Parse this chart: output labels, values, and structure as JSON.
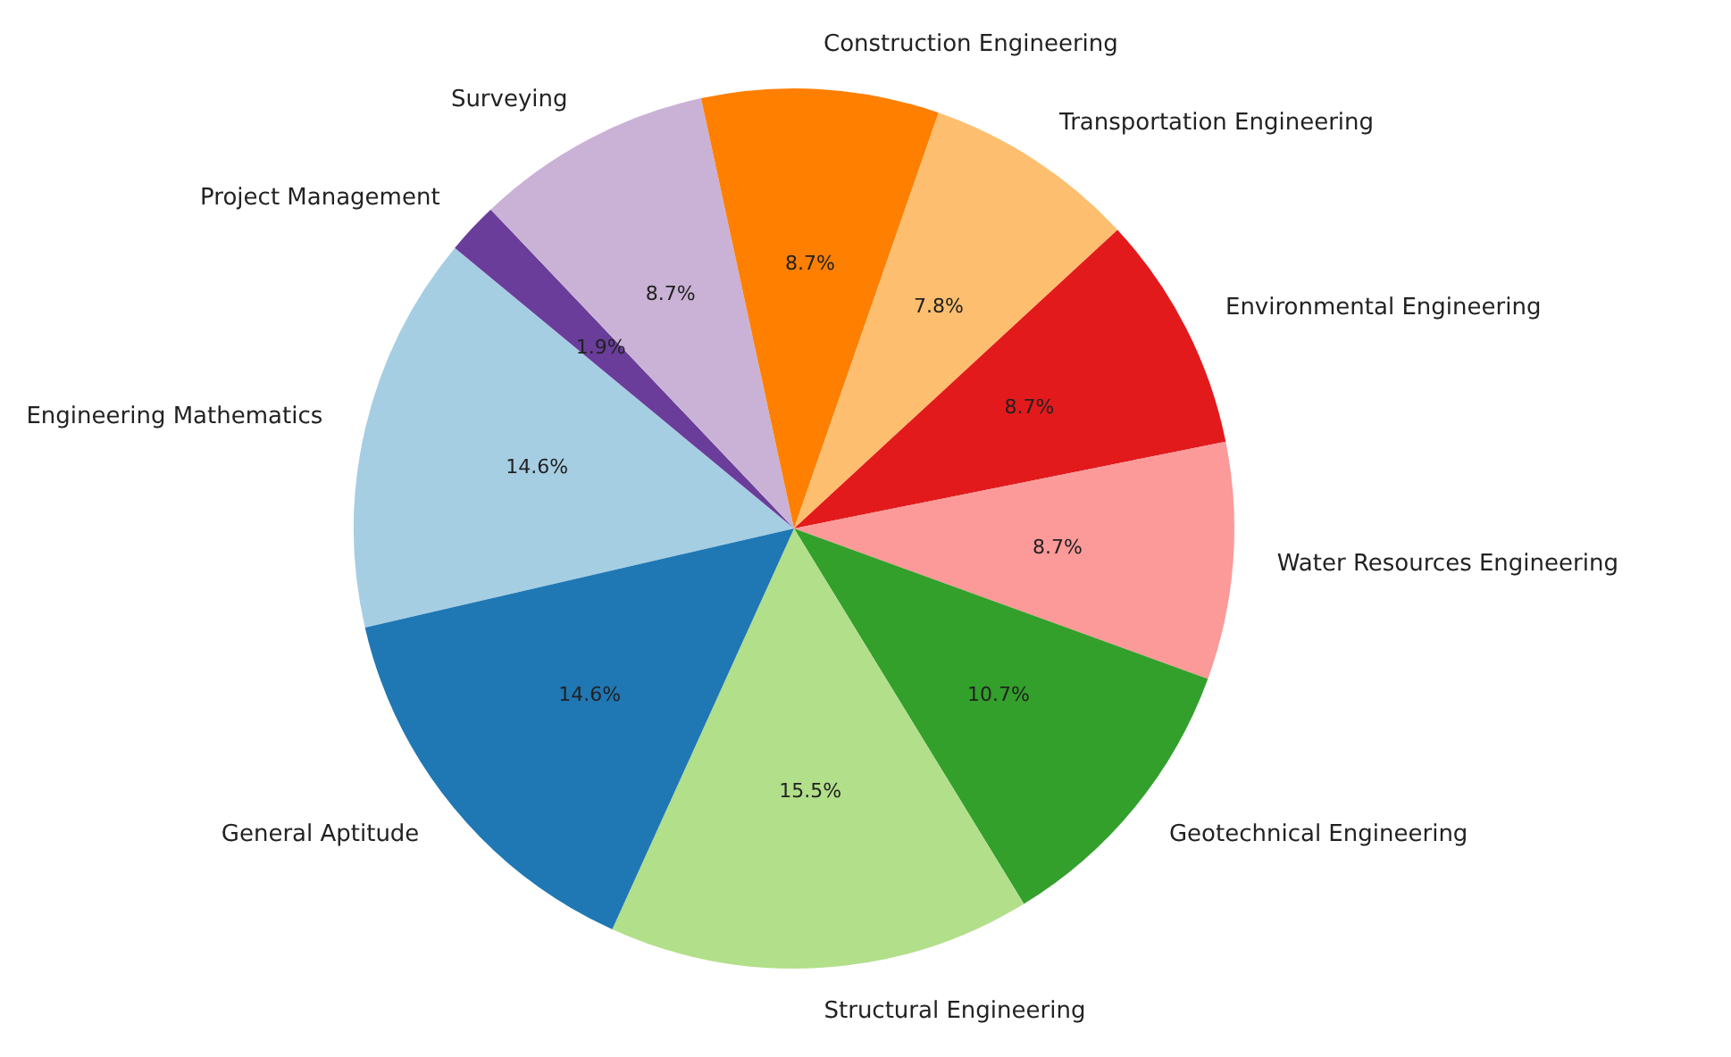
{
  "chart_data": {
    "type": "pie",
    "categories": [
      "Engineering Mathematics",
      "Project Management",
      "Surveying",
      "Construction Engineering",
      "Transportation Engineering",
      "Environmental Engineering",
      "Water Resources Engineering",
      "Geotechnical Engineering",
      "Structural Engineering",
      "General Aptitude"
    ],
    "values": [
      14.6,
      1.9,
      8.7,
      8.7,
      7.8,
      8.7,
      8.7,
      10.7,
      15.5,
      14.6
    ],
    "value_labels": [
      "14.6%",
      "1.9%",
      "8.7%",
      "8.7%",
      "7.8%",
      "8.7%",
      "8.7%",
      "10.7%",
      "15.5%",
      "14.6%"
    ],
    "colors": [
      "#a6cee3",
      "#6a3d9a",
      "#cab2d6",
      "#ff7f00",
      "#fdbf6f",
      "#e31a1c",
      "#fb9a99",
      "#33a02c",
      "#b2df8a",
      "#1f78b4"
    ]
  }
}
